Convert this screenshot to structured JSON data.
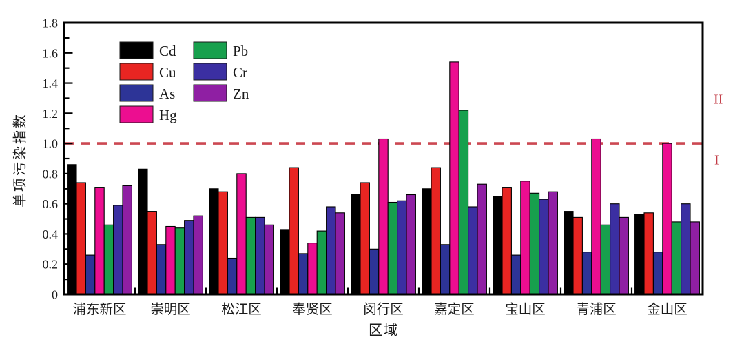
{
  "chart_data": {
    "type": "bar",
    "title": "",
    "xlabel": "区域",
    "ylabel": "单项污染指数",
    "ylim": [
      0,
      1.8
    ],
    "ytick_major_step": 0.2,
    "ytick_minor_step": 0.1,
    "grid": false,
    "legend_position": "top-left",
    "legend_columns": [
      [
        "Cd",
        "Cu",
        "As",
        "Hg"
      ],
      [
        "Pb",
        "Cr",
        "Zn"
      ]
    ],
    "categories": [
      "浦东新区",
      "崇明区",
      "松江区",
      "奉贤区",
      "闵行区",
      "嘉定区",
      "宝山区",
      "青浦区",
      "金山区"
    ],
    "series": [
      {
        "name": "Cd",
        "color": "#000000",
        "values": [
          0.86,
          0.83,
          0.7,
          0.43,
          0.66,
          0.7,
          0.65,
          0.55,
          0.53
        ]
      },
      {
        "name": "Cu",
        "color": "#e82522",
        "values": [
          0.74,
          0.55,
          0.68,
          0.84,
          0.74,
          0.84,
          0.71,
          0.51,
          0.54
        ]
      },
      {
        "name": "As",
        "color": "#2d3497",
        "values": [
          0.26,
          0.33,
          0.24,
          0.27,
          0.3,
          0.33,
          0.26,
          0.28,
          0.28
        ]
      },
      {
        "name": "Hg",
        "color": "#ec0e90",
        "values": [
          0.71,
          0.45,
          0.8,
          0.34,
          1.03,
          1.54,
          0.75,
          1.03,
          1.0
        ]
      },
      {
        "name": "Pb",
        "color": "#17a04d",
        "values": [
          0.46,
          0.44,
          0.51,
          0.42,
          0.61,
          1.22,
          0.67,
          0.46,
          0.48
        ]
      },
      {
        "name": "Cr",
        "color": "#3b2fa2",
        "values": [
          0.59,
          0.49,
          0.51,
          0.58,
          0.62,
          0.58,
          0.63,
          0.6,
          0.6
        ]
      },
      {
        "name": "Zn",
        "color": "#8f1fa3",
        "values": [
          0.72,
          0.52,
          0.46,
          0.54,
          0.66,
          0.73,
          0.68,
          0.51,
          0.48
        ]
      }
    ],
    "reference_line": {
      "value": 1.0,
      "color": "#cc4852",
      "style": "dashed",
      "label_above": "II",
      "label_below": "I"
    },
    "axis_color": "#000000",
    "tick_label_color": "#1a1a1a"
  }
}
